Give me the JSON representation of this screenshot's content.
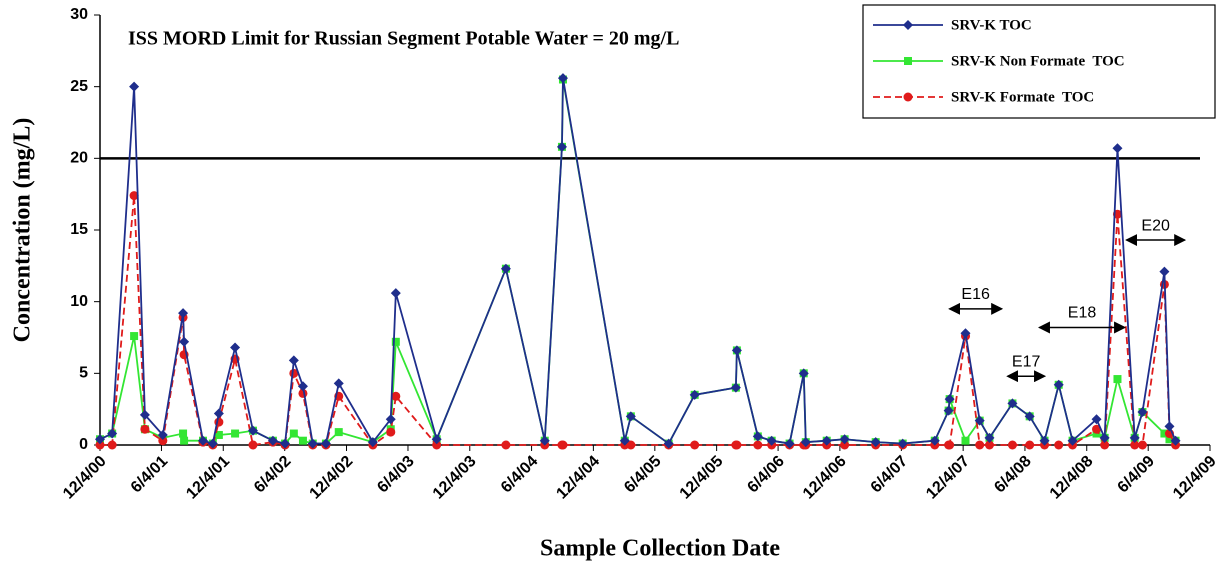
{
  "chart_data": {
    "type": "line",
    "title": "ISS MORD Limit for Russian Segment Potable Water = 20 mg/L",
    "x_label": "Sample Collection Date",
    "y_label": "Concentration (mg/L)",
    "x": [
      "12/4/00",
      "1/9/01",
      "3/15/01",
      "4/16/01",
      "6/8/01",
      "8/7/01",
      "8/10/01",
      "10/5/01",
      "11/3/01",
      "11/21/01",
      "1/8/02",
      "3/2/02",
      "4/30/02",
      "6/5/02",
      "7/1/02",
      "7/28/02",
      "8/26/02",
      "10/4/02",
      "11/11/02",
      "2/20/03",
      "4/14/03",
      "4/29/03",
      "8/28/03",
      "3/20/04",
      "7/13/04",
      "9/2/04",
      "9/5/04",
      "3/7/05",
      "3/25/05",
      "7/15/05",
      "9/30/05",
      "1/30/06",
      "2/2/06",
      "4/5/06",
      "5/16/06",
      "7/8/06",
      "8/19/06",
      "8/25/06",
      "10/26/06",
      "12/18/06",
      "3/20/07",
      "6/8/07",
      "9/11/07",
      "10/22/07",
      "10/25/07",
      "12/11/07",
      "1/22/08",
      "2/20/08",
      "4/28/08",
      "6/18/08",
      "8/1/08",
      "9/12/08",
      "10/23/08",
      "1/2/09",
      "1/26/09",
      "3/5/09",
      "4/25/09",
      "5/18/09",
      "7/22/09",
      "8/6/09",
      "8/24/09"
    ],
    "series": [
      {
        "name": "SRV-K TOC",
        "color": "#1f2e8c",
        "marker": "diamond",
        "dashed": false,
        "values": [
          0.4,
          0.8,
          25,
          2.1,
          0.7,
          9.2,
          7.2,
          0.3,
          0.1,
          2.2,
          6.8,
          1.0,
          0.3,
          0.1,
          5.9,
          4.1,
          0.1,
          0.1,
          4.3,
          0.2,
          1.8,
          10.6,
          0.4,
          12.3,
          0.3,
          20.8,
          25.6,
          0.3,
          2.0,
          0.1,
          3.5,
          4.0,
          6.6,
          0.6,
          0.3,
          0.1,
          5.0,
          0.2,
          0.3,
          0.4,
          0.2,
          0.1,
          0.3,
          2.4,
          3.2,
          7.8,
          1.7,
          0.5,
          2.9,
          2.0,
          0.3,
          4.2,
          0.3,
          1.8,
          0.5,
          20.7,
          0.5,
          2.3,
          12.1,
          1.3,
          0.3
        ]
      },
      {
        "name": "SRV-K Non Formate  TOC",
        "color": "#33e633",
        "marker": "square",
        "dashed": false,
        "values": [
          0.4,
          0.8,
          7.6,
          1.1,
          0.5,
          0.8,
          0.3,
          0.3,
          0.1,
          0.7,
          0.8,
          1.0,
          0.3,
          0.1,
          0.8,
          0.3,
          0.1,
          0.1,
          0.9,
          0.2,
          1.1,
          7.2,
          0.4,
          12.3,
          0.3,
          20.8,
          25.5,
          0.3,
          2.0,
          0.1,
          3.5,
          4.0,
          6.6,
          0.6,
          0.3,
          0.1,
          5.0,
          0.2,
          0.3,
          0.4,
          0.2,
          0.1,
          0.3,
          2.4,
          3.2,
          0.3,
          1.7,
          0.5,
          2.9,
          2.0,
          0.3,
          4.2,
          0.3,
          0.8,
          0.5,
          4.6,
          0.5,
          2.3,
          0.8,
          0.4,
          0.3
        ]
      },
      {
        "name": "SRV-K Formate  TOC",
        "color": "#e01b1b",
        "marker": "circle",
        "dashed": true,
        "values": [
          0,
          0,
          17.4,
          1.1,
          0.3,
          8.9,
          6.3,
          0.2,
          0,
          1.6,
          6.0,
          0,
          0.2,
          0,
          5.0,
          3.6,
          0,
          0,
          3.4,
          0,
          0.9,
          3.4,
          0,
          0,
          0,
          0,
          0,
          0,
          0,
          0,
          0,
          0,
          0,
          0,
          0,
          0,
          0,
          0,
          0,
          0,
          0,
          0,
          0,
          0,
          0,
          7.6,
          0,
          0,
          0,
          0,
          0,
          0,
          0,
          1.1,
          0,
          16.1,
          0,
          0,
          11.2,
          0.8,
          0
        ]
      }
    ],
    "reference_line": 20,
    "annotations": [
      {
        "label": "E16",
        "x_from": "10/25/07",
        "x_to": "3/27/08",
        "y": 9.5
      },
      {
        "label": "E17",
        "x_from": "4/14/08",
        "x_to": "8/1/08",
        "y": 4.8
      },
      {
        "label": "E18",
        "x_from": "7/17/08",
        "x_to": "3/26/09",
        "y": 8.2
      },
      {
        "label": "E20",
        "x_from": "4/1/09",
        "x_to": "9/20/09",
        "y": 14.3
      }
    ],
    "xlim": [
      "12/4/00",
      "12/4/09"
    ],
    "xticks": [
      "12/4/00",
      "6/4/01",
      "12/4/01",
      "6/4/02",
      "12/4/02",
      "6/4/03",
      "12/4/03",
      "6/4/04",
      "12/4/04",
      "6/4/05",
      "12/4/05",
      "6/4/06",
      "12/4/06",
      "6/4/07",
      "12/4/07",
      "6/4/08",
      "12/4/08",
      "6/4/09",
      "12/4/09"
    ],
    "ylim": [
      0,
      30
    ],
    "yticks": [
      0,
      5,
      10,
      15,
      20,
      25,
      30
    ],
    "legend": "upper right"
  }
}
